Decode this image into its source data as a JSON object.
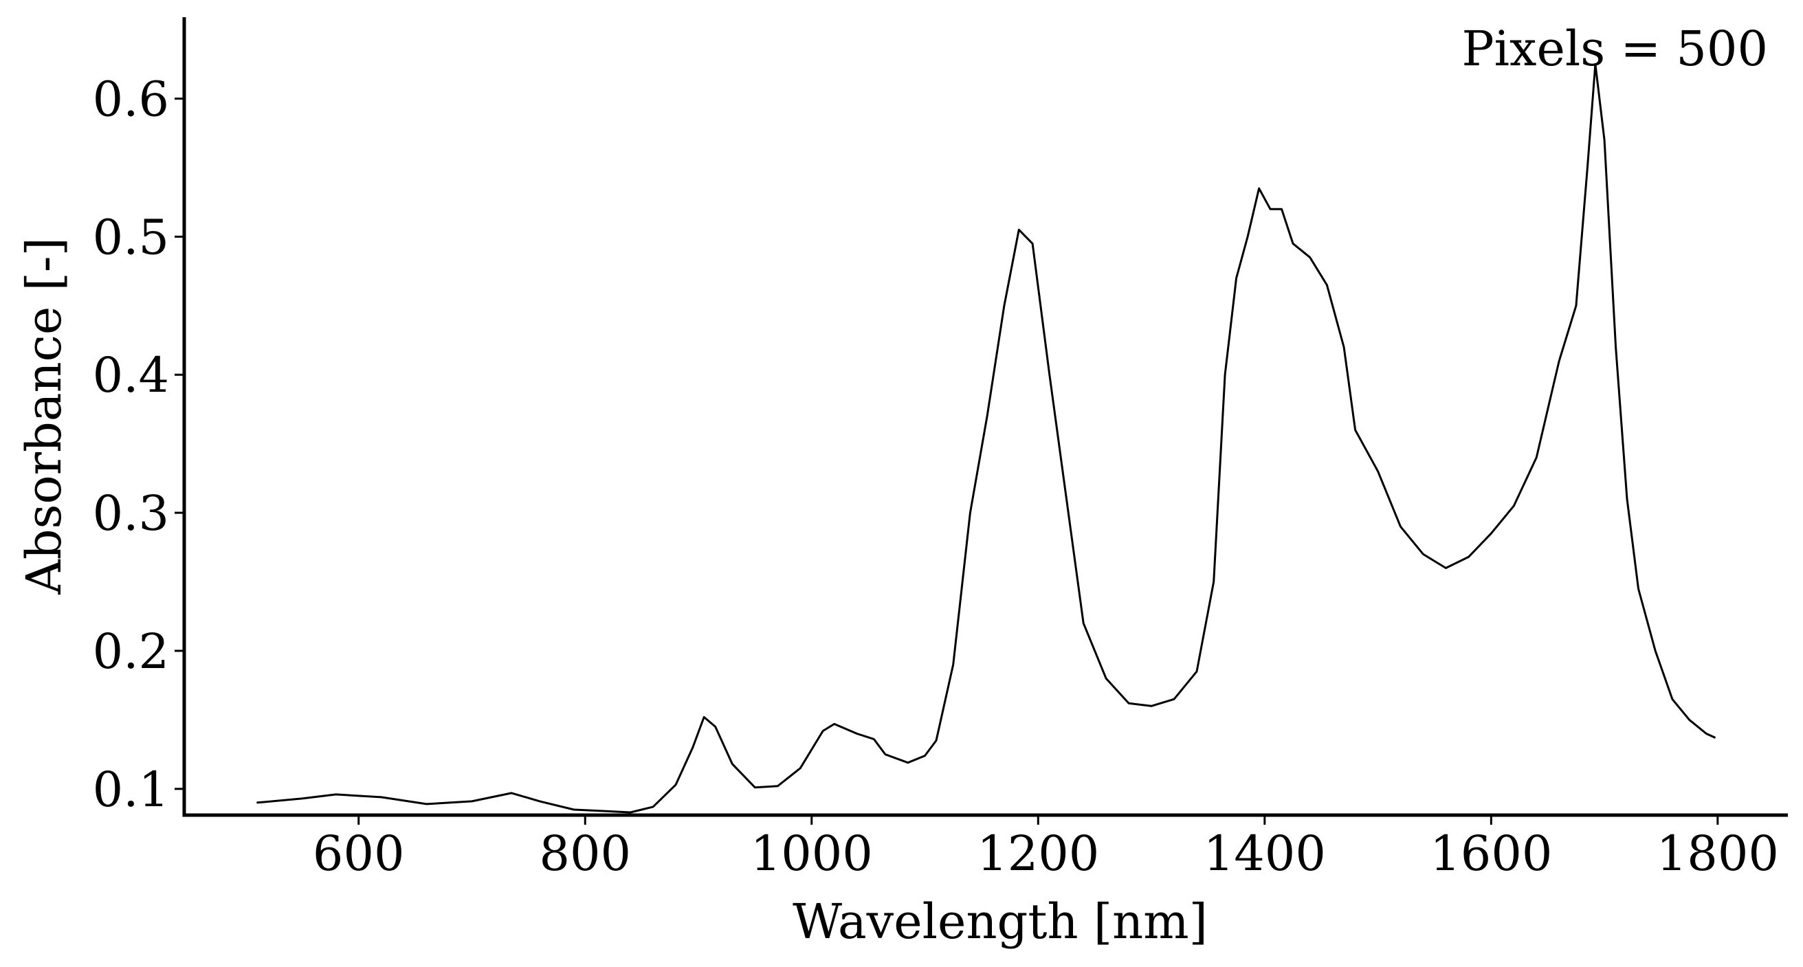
{
  "chart_data": {
    "type": "line",
    "x_label": "Wavelength [nm]",
    "y_label": "Absorbance [-]",
    "annotation": "Pixels = 500",
    "x": [
      510,
      550,
      580,
      620,
      660,
      700,
      735,
      760,
      790,
      840,
      860,
      880,
      895,
      905,
      915,
      930,
      950,
      970,
      990,
      1010,
      1020,
      1040,
      1055,
      1065,
      1085,
      1100,
      1110,
      1125,
      1140,
      1155,
      1170,
      1183,
      1195,
      1210,
      1225,
      1240,
      1260,
      1280,
      1300,
      1320,
      1340,
      1355,
      1365,
      1375,
      1385,
      1395,
      1405,
      1415,
      1425,
      1440,
      1455,
      1470,
      1480,
      1500,
      1520,
      1540,
      1560,
      1580,
      1600,
      1620,
      1640,
      1660,
      1675,
      1685,
      1692,
      1700,
      1710,
      1720,
      1730,
      1745,
      1760,
      1775,
      1790,
      1798
    ],
    "series": [
      {
        "color": "#000000",
        "values": [
          0.09,
          0.093,
          0.096,
          0.094,
          0.089,
          0.091,
          0.097,
          0.091,
          0.085,
          0.083,
          0.087,
          0.103,
          0.13,
          0.152,
          0.145,
          0.118,
          0.101,
          0.102,
          0.115,
          0.142,
          0.147,
          0.14,
          0.136,
          0.125,
          0.119,
          0.124,
          0.135,
          0.19,
          0.3,
          0.37,
          0.45,
          0.505,
          0.495,
          0.4,
          0.31,
          0.22,
          0.18,
          0.162,
          0.16,
          0.165,
          0.185,
          0.25,
          0.4,
          0.47,
          0.5,
          0.535,
          0.52,
          0.52,
          0.495,
          0.485,
          0.465,
          0.42,
          0.36,
          0.33,
          0.29,
          0.27,
          0.26,
          0.268,
          0.285,
          0.305,
          0.34,
          0.41,
          0.45,
          0.55,
          0.625,
          0.57,
          0.42,
          0.31,
          0.245,
          0.2,
          0.165,
          0.15,
          0.14,
          0.137
        ]
      }
    ],
    "xlim": [
      446,
      1862
    ],
    "ylim": [
      0.081,
      0.659
    ],
    "xticks": [
      600,
      800,
      1000,
      1200,
      1400,
      1600,
      1800
    ],
    "yticks": [
      0.1,
      0.2,
      0.3,
      0.4,
      0.5,
      0.6
    ],
    "grid": false
  }
}
